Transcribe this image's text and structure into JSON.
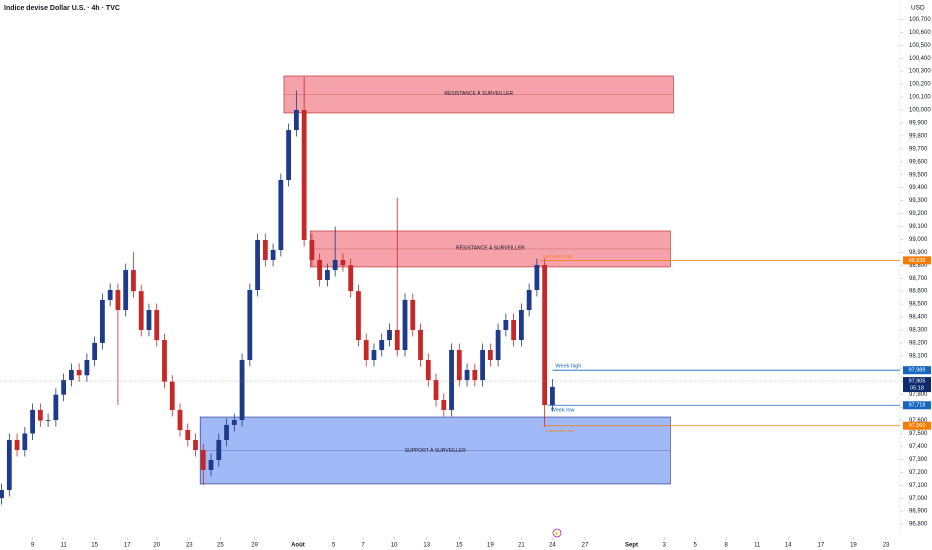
{
  "chart_data": {
    "type": "candlestick",
    "title": "Indice devise Dollar U.S. · 4h · TVC",
    "currency": "USD",
    "up_color": "#1e3a8a",
    "down_color": "#c62828",
    "xlim": [
      -2.1,
      55.9
    ],
    "ylim": [
      96700,
      100850
    ],
    "candles": {
      "x": [
        -2,
        -1.5,
        -1,
        -0.5,
        0,
        0.5,
        1,
        1.5,
        2,
        2.5,
        3,
        3.5,
        4,
        4.5,
        5,
        5.5,
        6,
        6.5,
        7,
        7.5,
        8,
        8.5,
        9,
        9.5,
        10,
        10.5,
        11,
        11.5,
        12,
        12.5,
        13,
        13.5,
        14,
        14.5,
        15,
        15.5,
        16,
        16.5,
        17,
        17.5,
        18,
        18.5,
        19,
        19.5,
        20,
        20.5,
        21,
        21.5,
        22,
        22.5,
        23,
        23.5,
        24,
        24.5,
        25,
        25.5,
        26,
        26.5,
        27,
        27.5,
        28,
        28.5,
        29,
        29.5,
        30,
        30.5,
        31,
        31.5,
        32,
        32.5,
        33,
        33.5
      ],
      "open": [
        97000,
        97063,
        97450,
        97372,
        97500,
        97682,
        97600,
        97604,
        97800,
        97913,
        97991,
        97950,
        98068,
        98200,
        98532,
        98609,
        98454,
        98763,
        98600,
        98300,
        98454,
        98222,
        97900,
        97682,
        97527,
        97450,
        97372,
        97218,
        97295,
        97450,
        97566,
        97604,
        98068,
        98609,
        98995,
        98841,
        98918,
        99459,
        99845,
        100000,
        98995,
        98841,
        98686,
        98763,
        98841,
        98800,
        98600,
        98222,
        98068,
        98145,
        98222,
        98300,
        98145,
        98532,
        98300,
        98068,
        97913,
        97759,
        97682,
        98145,
        97913,
        97991,
        97913,
        98145,
        98068,
        98300,
        98377,
        98222,
        98454,
        98609,
        98802,
        97720
      ],
      "high": [
        97113,
        97500,
        97500,
        97550,
        97732,
        97732,
        97654,
        97850,
        97963,
        98041,
        98041,
        98118,
        98250,
        98582,
        98659,
        98659,
        98813,
        98900,
        98650,
        98504,
        98504,
        98272,
        97950,
        97732,
        97577,
        97500,
        97422,
        97345,
        97500,
        97616,
        97654,
        98118,
        98659,
        99045,
        99045,
        98968,
        99509,
        99895,
        100150,
        100255,
        99045,
        98891,
        98813,
        99100,
        98891,
        98850,
        98650,
        98272,
        98195,
        98272,
        98350,
        99320,
        98582,
        98582,
        98350,
        98118,
        97963,
        97809,
        98195,
        98195,
        98041,
        98041,
        98195,
        98195,
        98350,
        98427,
        98427,
        98504,
        98659,
        98852,
        98852,
        97920
      ],
      "low": [
        96950,
        97013,
        97322,
        97322,
        97450,
        97550,
        97550,
        97554,
        97750,
        97863,
        97900,
        97900,
        98018,
        98150,
        98482,
        97720,
        98404,
        98550,
        98250,
        98250,
        98172,
        97850,
        97632,
        97477,
        97400,
        97322,
        97100,
        97168,
        97245,
        97400,
        97516,
        97554,
        98018,
        98559,
        98791,
        98791,
        98868,
        99409,
        99795,
        98945,
        98791,
        98636,
        98636,
        98713,
        98750,
        98550,
        98172,
        98018,
        98018,
        98095,
        98172,
        98095,
        98095,
        98250,
        98018,
        97863,
        97709,
        97632,
        97632,
        97863,
        97863,
        97863,
        97863,
        98018,
        98018,
        98250,
        98172,
        98172,
        98404,
        98559,
        97550,
        97670
      ],
      "close": [
        97063,
        97450,
        97372,
        97500,
        97682,
        97600,
        97604,
        97800,
        97913,
        97991,
        97950,
        98068,
        98200,
        98532,
        98609,
        98454,
        98763,
        98600,
        98300,
        98454,
        98222,
        97900,
        97682,
        97527,
        97450,
        97372,
        97218,
        97295,
        97450,
        97566,
        97604,
        98068,
        98609,
        98995,
        98841,
        98918,
        99459,
        99845,
        100000,
        98995,
        98841,
        98686,
        98763,
        98841,
        98800,
        98600,
        98222,
        98068,
        98145,
        98222,
        98300,
        98145,
        98532,
        98300,
        98068,
        97913,
        97759,
        97682,
        98145,
        97913,
        97991,
        97913,
        98145,
        98068,
        98300,
        98377,
        98222,
        98454,
        98609,
        98802,
        97720,
        97860
      ]
    },
    "zones": [
      {
        "label": "RESISTANCE À SURVEILLER",
        "x": [
          16.2,
          41.3
        ],
        "y": [
          99977,
          100263
        ],
        "color": "#f28b95",
        "edge": "#b71c1c"
      },
      {
        "label": "RÉSISTANCE À SURVEILLER",
        "x": [
          17.9,
          41.1
        ],
        "y": [
          98787,
          99065
        ],
        "color": "#f28b95",
        "edge": "#b71c1c"
      },
      {
        "label": "SUPPORT À SURVEILLER",
        "x": [
          10.8,
          41.1
        ],
        "y": [
          97110,
          97627
        ],
        "color": "#8aa8f5",
        "edge": "#1a237e"
      }
    ],
    "levels": [
      {
        "name": "Last week's high",
        "value": 98838,
        "label": "98,838",
        "start": 32.7,
        "color": "#f57c00"
      },
      {
        "name": "Week high",
        "value": 97989,
        "label": "97,989",
        "start": 33.5,
        "color": "#1565c0"
      },
      {
        "name": "Week low",
        "value": 97718,
        "label": "97,718",
        "start": 33.2,
        "color": "#1565c0"
      },
      {
        "name": "Last week's low",
        "value": 97560,
        "label": "97,560",
        "start": 32.9,
        "color": "#f57c00"
      }
    ],
    "current": {
      "value": 97905,
      "label": "97,905",
      "countdown": "05:18",
      "color": "#0d2a6e"
    },
    "xticks": [
      {
        "value": 0,
        "label": "9"
      },
      {
        "value": 2,
        "label": "11"
      },
      {
        "value": 4,
        "label": "15"
      },
      {
        "value": 6.1,
        "label": "17"
      },
      {
        "value": 8,
        "label": "20"
      },
      {
        "value": 10.1,
        "label": "23"
      },
      {
        "value": 12.1,
        "label": "25"
      },
      {
        "value": 14.3,
        "label": "29"
      },
      {
        "value": 17.1,
        "label": "Août"
      },
      {
        "value": 19.4,
        "label": "5"
      },
      {
        "value": 21.3,
        "label": "7"
      },
      {
        "value": 23.3,
        "label": "10"
      },
      {
        "value": 25.4,
        "label": "13"
      },
      {
        "value": 27.5,
        "label": "15"
      },
      {
        "value": 29.5,
        "label": "19"
      },
      {
        "value": 31.5,
        "label": "21"
      },
      {
        "value": 33.5,
        "label": "24"
      },
      {
        "value": 35.6,
        "label": "27"
      },
      {
        "value": 38.6,
        "label": "Sept"
      },
      {
        "value": 40.7,
        "label": "3"
      },
      {
        "value": 42.7,
        "label": "5"
      },
      {
        "value": 44.7,
        "label": "8"
      },
      {
        "value": 46.7,
        "label": "11"
      },
      {
        "value": 48.7,
        "label": "14"
      },
      {
        "value": 50.8,
        "label": "17"
      },
      {
        "value": 52.9,
        "label": "19"
      },
      {
        "value": 55,
        "label": "23"
      }
    ],
    "yticks": [
      {
        "value": 96800,
        "label": "96,800"
      },
      {
        "value": 96900,
        "label": "96,900"
      },
      {
        "value": 97000,
        "label": "97,000"
      },
      {
        "value": 97100,
        "label": "97,100"
      },
      {
        "value": 97200,
        "label": "97,200"
      },
      {
        "value": 97300,
        "label": "97,300"
      },
      {
        "value": 97400,
        "label": "97,400"
      },
      {
        "value": 97500,
        "label": "97,500"
      },
      {
        "value": 97600,
        "label": "97,600"
      },
      {
        "value": 97700,
        "label": "97,700"
      },
      {
        "value": 97800,
        "label": "97,800"
      },
      {
        "value": 97900,
        "label": "97,900"
      },
      {
        "value": 98000,
        "label": "98,000"
      },
      {
        "value": 98100,
        "label": "98,100"
      },
      {
        "value": 98200,
        "label": "98,200"
      },
      {
        "value": 98300,
        "label": "98,300"
      },
      {
        "value": 98400,
        "label": "98,400"
      },
      {
        "value": 98500,
        "label": "98,500"
      },
      {
        "value": 98600,
        "label": "98,600"
      },
      {
        "value": 98700,
        "label": "98,700"
      },
      {
        "value": 98800,
        "label": "98,800"
      },
      {
        "value": 98900,
        "label": "98,900"
      },
      {
        "value": 99000,
        "label": "99,000"
      },
      {
        "value": 99100,
        "label": "99,100"
      },
      {
        "value": 99200,
        "label": "99,200"
      },
      {
        "value": 99300,
        "label": "99,300"
      },
      {
        "value": 99400,
        "label": "99,400"
      },
      {
        "value": 99500,
        "label": "99,500"
      },
      {
        "value": 99600,
        "label": "99,600"
      },
      {
        "value": 99700,
        "label": "99,700"
      },
      {
        "value": 99800,
        "label": "99,800"
      },
      {
        "value": 99900,
        "label": "99,900"
      },
      {
        "value": 100000,
        "label": "100,000"
      },
      {
        "value": 100100,
        "label": "100,100"
      },
      {
        "value": 100200,
        "label": "100,200"
      },
      {
        "value": 100300,
        "label": "100,300"
      },
      {
        "value": 100400,
        "label": "100,400"
      },
      {
        "value": 100500,
        "label": "100,500"
      },
      {
        "value": 100600,
        "label": "100,600"
      },
      {
        "value": 100700,
        "label": "100,700"
      }
    ]
  }
}
